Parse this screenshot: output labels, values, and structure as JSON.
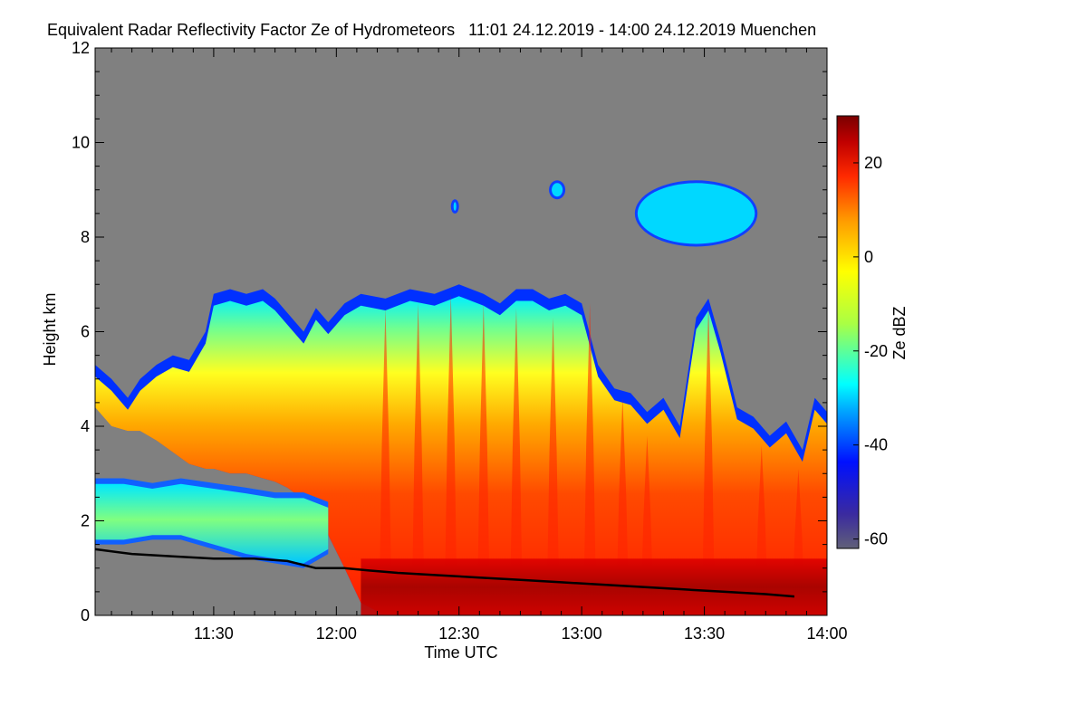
{
  "chart_data": {
    "type": "heatmap",
    "title": "Equivalent Radar Reflectivity Factor Ze of Hydrometeors   11:01 24.12.2019 - 14:00 24.12.2019 Muenchen",
    "xlabel": "Time UTC",
    "ylabel": "Height km",
    "x_unit": "minutes after 11:00 UTC",
    "xlim": [
      1,
      180
    ],
    "ylim": [
      0,
      12
    ],
    "x_ticks": [
      {
        "value": 30,
        "label": "11:30"
      },
      {
        "value": 60,
        "label": "12:00"
      },
      {
        "value": 90,
        "label": "12:30"
      },
      {
        "value": 120,
        "label": "13:00"
      },
      {
        "value": 150,
        "label": "13:30"
      },
      {
        "value": 180,
        "label": "14:00"
      }
    ],
    "y_ticks": [
      {
        "value": 0,
        "label": "0"
      },
      {
        "value": 2,
        "label": "2"
      },
      {
        "value": 4,
        "label": "4"
      },
      {
        "value": 6,
        "label": "6"
      },
      {
        "value": 8,
        "label": "8"
      },
      {
        "value": 10,
        "label": "10"
      },
      {
        "value": 12,
        "label": "12"
      }
    ],
    "colorbar": {
      "label": "Ze dBZ",
      "range": [
        -62,
        30
      ],
      "ticks": [
        {
          "value": 20,
          "label": "20"
        },
        {
          "value": 0,
          "label": "0"
        },
        {
          "value": -20,
          "label": "-20"
        },
        {
          "value": -40,
          "label": "-40"
        },
        {
          "value": -60,
          "label": "-60"
        }
      ]
    },
    "cloud_layer": {
      "name": "precipitating cloud",
      "top_km": [
        [
          1,
          5.3
        ],
        [
          5,
          5.0
        ],
        [
          9,
          4.6
        ],
        [
          12,
          5.0
        ],
        [
          16,
          5.3
        ],
        [
          20,
          5.5
        ],
        [
          24,
          5.4
        ],
        [
          28,
          6.0
        ],
        [
          30,
          6.8
        ],
        [
          34,
          6.9
        ],
        [
          38,
          6.8
        ],
        [
          42,
          6.9
        ],
        [
          45,
          6.7
        ],
        [
          48,
          6.4
        ],
        [
          52,
          6.0
        ],
        [
          55,
          6.5
        ],
        [
          58,
          6.2
        ],
        [
          62,
          6.6
        ],
        [
          66,
          6.8
        ],
        [
          72,
          6.7
        ],
        [
          78,
          6.9
        ],
        [
          84,
          6.8
        ],
        [
          90,
          7.0
        ],
        [
          96,
          6.8
        ],
        [
          100,
          6.6
        ],
        [
          104,
          6.9
        ],
        [
          108,
          6.9
        ],
        [
          112,
          6.7
        ],
        [
          116,
          6.8
        ],
        [
          120,
          6.6
        ],
        [
          124,
          5.3
        ],
        [
          128,
          4.8
        ],
        [
          132,
          4.7
        ],
        [
          136,
          4.3
        ],
        [
          140,
          4.6
        ],
        [
          144,
          4.0
        ],
        [
          148,
          6.3
        ],
        [
          151,
          6.7
        ],
        [
          154,
          5.8
        ],
        [
          158,
          4.4
        ],
        [
          162,
          4.2
        ],
        [
          166,
          3.8
        ],
        [
          170,
          4.1
        ],
        [
          174,
          3.5
        ],
        [
          177,
          4.6
        ],
        [
          180,
          4.3
        ]
      ],
      "base_km": [
        [
          1,
          4.4
        ],
        [
          6,
          3.9
        ],
        [
          12,
          3.9
        ],
        [
          18,
          3.6
        ],
        [
          22,
          3.3
        ],
        [
          26,
          3.1
        ],
        [
          30,
          3.1
        ],
        [
          34,
          3.0
        ],
        [
          38,
          3.0
        ],
        [
          42,
          2.9
        ],
        [
          46,
          2.8
        ],
        [
          50,
          2.6
        ],
        [
          54,
          2.3
        ],
        [
          58,
          1.7
        ],
        [
          62,
          1.0
        ],
        [
          65,
          0.4
        ],
        [
          68,
          0.0
        ],
        [
          180,
          0.0
        ]
      ]
    },
    "low_layer": {
      "name": "low cloud",
      "top_km": [
        [
          1,
          2.9
        ],
        [
          8,
          2.9
        ],
        [
          15,
          2.8
        ],
        [
          22,
          2.9
        ],
        [
          30,
          2.8
        ],
        [
          38,
          2.7
        ],
        [
          45,
          2.6
        ],
        [
          52,
          2.6
        ],
        [
          58,
          2.4
        ]
      ],
      "base_km": [
        [
          1,
          1.5
        ],
        [
          8,
          1.5
        ],
        [
          15,
          1.6
        ],
        [
          22,
          1.6
        ],
        [
          30,
          1.4
        ],
        [
          38,
          1.2
        ],
        [
          45,
          1.1
        ],
        [
          52,
          1.0
        ],
        [
          58,
          1.3
        ]
      ]
    },
    "upper_patches": [
      {
        "name": "cirrus",
        "x_range": [
          133,
          163
        ],
        "y_range": [
          7.8,
          9.2
        ],
        "ze_dbz": -30
      },
      {
        "name": "cirrus-fleck",
        "x_range": [
          112,
          116
        ],
        "y_range": [
          8.8,
          9.2
        ],
        "ze_dbz": -30
      },
      {
        "name": "cirrus-fleck",
        "x_range": [
          88,
          90
        ],
        "y_range": [
          8.5,
          8.8
        ],
        "ze_dbz": -28
      }
    ],
    "fall_streaks": [
      {
        "x": 72,
        "top_km": 6.5
      },
      {
        "x": 80,
        "top_km": 6.6
      },
      {
        "x": 88,
        "top_km": 6.8
      },
      {
        "x": 96,
        "top_km": 6.6
      },
      {
        "x": 104,
        "top_km": 6.5
      },
      {
        "x": 113,
        "top_km": 6.3
      },
      {
        "x": 122,
        "top_km": 6.6
      },
      {
        "x": 130,
        "top_km": 4.6
      },
      {
        "x": 136,
        "top_km": 3.8
      },
      {
        "x": 151,
        "top_km": 6.6
      },
      {
        "x": 164,
        "top_km": 3.6
      },
      {
        "x": 173,
        "top_km": 3.1
      }
    ],
    "melting_layer": {
      "name": "bright band",
      "x_range": [
        66,
        180
      ],
      "y_range": [
        0.0,
        1.2
      ],
      "ze_dbz": 28
    },
    "series": [
      {
        "name": "boundary line",
        "x": [
          1,
          10,
          20,
          30,
          40,
          48,
          55,
          62,
          68,
          75,
          85,
          95,
          105,
          115,
          125,
          135,
          145,
          155,
          165,
          172
        ],
        "y": [
          1.4,
          1.3,
          1.25,
          1.2,
          1.2,
          1.15,
          1.0,
          1.0,
          0.95,
          0.9,
          0.85,
          0.8,
          0.75,
          0.7,
          0.65,
          0.6,
          0.55,
          0.5,
          0.45,
          0.4
        ]
      }
    ],
    "background_color": "#808080",
    "line_color": "#000000"
  }
}
